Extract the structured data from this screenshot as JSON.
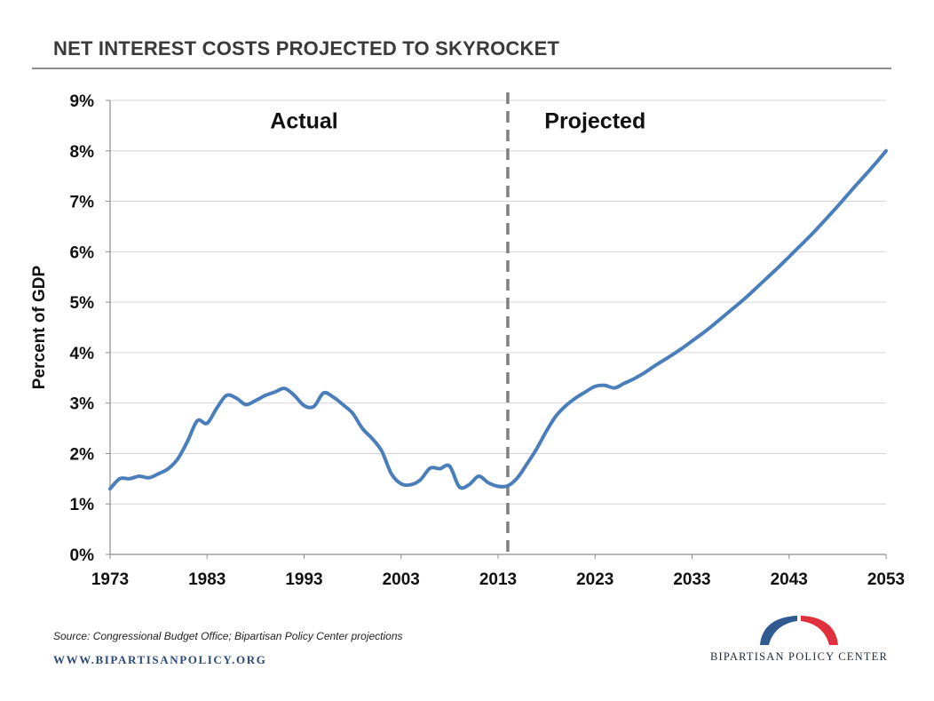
{
  "page": {
    "title": "NET INTEREST COSTS PROJECTED TO SKYROCKET",
    "source": "Source: Congressional Budget Office; Bipartisan Policy Center projections",
    "website": "WWW.BIPARTISANPOLICY.ORG",
    "logo_text": "BIPARTISAN POLICY CENTER",
    "logo_colors": {
      "left": "#2f5a92",
      "right": "#e0303e"
    }
  },
  "chart_data": {
    "type": "line",
    "title": "NET INTEREST COSTS PROJECTED TO SKYROCKET",
    "xlabel": "",
    "ylabel": "Percent of GDP",
    "xlim": [
      1973,
      2053
    ],
    "ylim": [
      0,
      9
    ],
    "xticks": [
      "1973",
      "1983",
      "1993",
      "2003",
      "2013",
      "2023",
      "2033",
      "2043",
      "2053"
    ],
    "yticks": [
      "0%",
      "1%",
      "2%",
      "3%",
      "4%",
      "5%",
      "6%",
      "7%",
      "8%",
      "9%"
    ],
    "grid": "horizontal",
    "line_color": "#4a7ebb",
    "divider": {
      "x": 2014,
      "style": "dashed",
      "color": "#808080"
    },
    "annotations": [
      {
        "text": "Actual",
        "x": 1993,
        "y": 8.6
      },
      {
        "text": "Projected",
        "x": 2023,
        "y": 8.6
      }
    ],
    "series": [
      {
        "x": [
          1973,
          1974,
          1975,
          1976,
          1977,
          1978,
          1979,
          1980,
          1981,
          1982,
          1983,
          1984,
          1985,
          1986,
          1987,
          1988,
          1989,
          1990,
          1991,
          1992,
          1993,
          1994,
          1995,
          1996,
          1997,
          1998,
          1999,
          2000,
          2001,
          2002,
          2003,
          2004,
          2005,
          2006,
          2007,
          2008,
          2009,
          2010,
          2011,
          2012,
          2013,
          2014,
          2015,
          2016,
          2017,
          2018,
          2019,
          2020,
          2021,
          2022,
          2023,
          2024,
          2025,
          2026,
          2027,
          2028,
          2029,
          2030,
          2031,
          2032,
          2033,
          2034,
          2035,
          2036,
          2037,
          2038,
          2039,
          2040,
          2041,
          2042,
          2043,
          2044,
          2045,
          2046,
          2047,
          2048,
          2049,
          2050,
          2051,
          2052,
          2053
        ],
        "values": [
          1.3,
          1.5,
          1.5,
          1.55,
          1.52,
          1.6,
          1.7,
          1.9,
          2.25,
          2.65,
          2.6,
          2.9,
          3.15,
          3.1,
          2.97,
          3.05,
          3.15,
          3.22,
          3.29,
          3.15,
          2.95,
          2.93,
          3.2,
          3.12,
          2.97,
          2.8,
          2.5,
          2.3,
          2.05,
          1.6,
          1.4,
          1.38,
          1.48,
          1.71,
          1.7,
          1.75,
          1.34,
          1.38,
          1.55,
          1.42,
          1.35,
          1.36,
          1.52,
          1.8,
          2.1,
          2.45,
          2.75,
          2.95,
          3.1,
          3.22,
          3.33,
          3.35,
          3.3,
          3.39,
          3.48,
          3.59,
          3.72,
          3.84,
          3.96,
          4.09,
          4.23,
          4.37,
          4.52,
          4.68,
          4.84,
          5.0,
          5.17,
          5.35,
          5.53,
          5.71,
          5.9,
          6.09,
          6.28,
          6.48,
          6.69,
          6.9,
          7.12,
          7.34,
          7.55,
          7.77,
          8.0
        ]
      }
    ]
  }
}
